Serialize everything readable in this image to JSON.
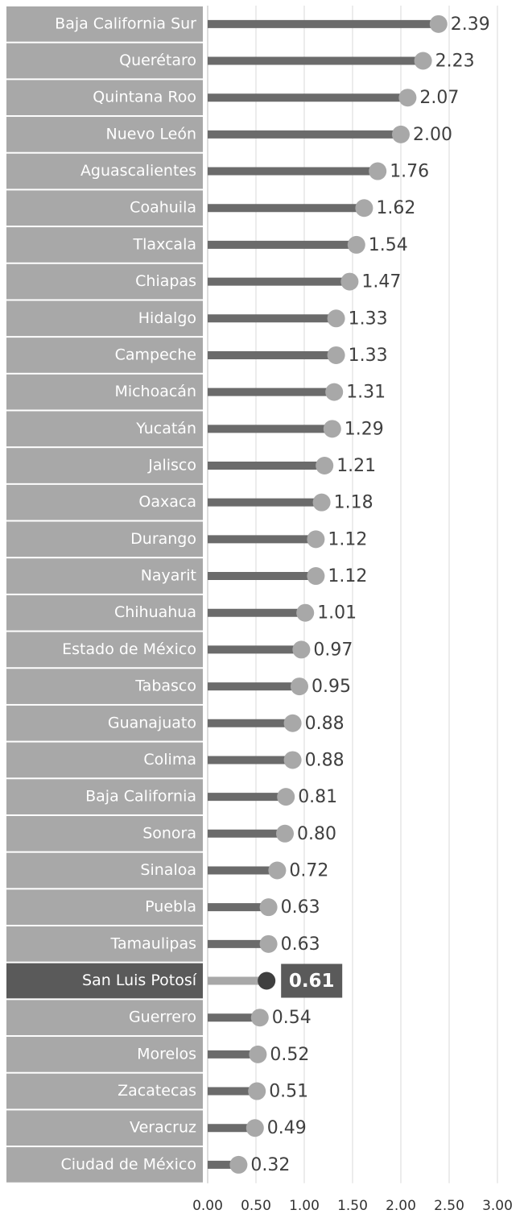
{
  "chart_data": {
    "type": "lollipop",
    "orientation": "horizontal",
    "categories": [
      "Baja California Sur",
      "Querétaro",
      "Quintana Roo",
      "Nuevo León",
      "Aguascalientes",
      "Coahuila",
      "Tlaxcala",
      "Chiapas",
      "Hidalgo",
      "Campeche",
      "Michoacán",
      "Yucatán",
      "Jalisco",
      "Oaxaca",
      "Durango",
      "Nayarit",
      "Chihuahua",
      "Estado de México",
      "Tabasco",
      "Guanajuato",
      "Colima",
      "Baja California",
      "Sonora",
      "Sinaloa",
      "Puebla",
      "Tamaulipas",
      "San Luis Potosí",
      "Guerrero",
      "Morelos",
      "Zacatecas",
      "Veracruz",
      "Ciudad de México"
    ],
    "values": [
      2.39,
      2.23,
      2.07,
      2.0,
      1.76,
      1.62,
      1.54,
      1.47,
      1.33,
      1.33,
      1.31,
      1.29,
      1.21,
      1.18,
      1.12,
      1.12,
      1.01,
      0.97,
      0.95,
      0.88,
      0.88,
      0.81,
      0.8,
      0.72,
      0.63,
      0.63,
      0.61,
      0.54,
      0.52,
      0.51,
      0.49,
      0.32
    ],
    "value_labels": [
      "2.39",
      "2.23",
      "2.07",
      "2.00",
      "1.76",
      "1.62",
      "1.54",
      "1.47",
      "1.33",
      "1.33",
      "1.31",
      "1.29",
      "1.21",
      "1.18",
      "1.12",
      "1.12",
      "1.01",
      "0.97",
      "0.95",
      "0.88",
      "0.88",
      "0.81",
      "0.80",
      "0.72",
      "0.63",
      "0.63",
      "0.61",
      "0.54",
      "0.52",
      "0.51",
      "0.49",
      "0.32"
    ],
    "xlim": [
      0,
      3
    ],
    "xticks": [
      {
        "value": 0,
        "label": "0.00"
      },
      {
        "value": 0.5,
        "label": "0.50"
      },
      {
        "value": 1,
        "label": "1.00"
      },
      {
        "value": 1.5,
        "label": "1.50"
      },
      {
        "value": 2,
        "label": "2.00"
      },
      {
        "value": 2.5,
        "label": "2.50"
      },
      {
        "value": 3,
        "label": "3.00"
      }
    ],
    "grid": true,
    "bar_color": "#6b6b6b",
    "dot_color": "#a8a8a8",
    "label_box_color": "#a8a8a8",
    "highlight": {
      "index": 26,
      "bar_color": "#a8a8a8",
      "dot_color": "#3f3f3f",
      "label_box_color": "#5a5a5a"
    }
  }
}
